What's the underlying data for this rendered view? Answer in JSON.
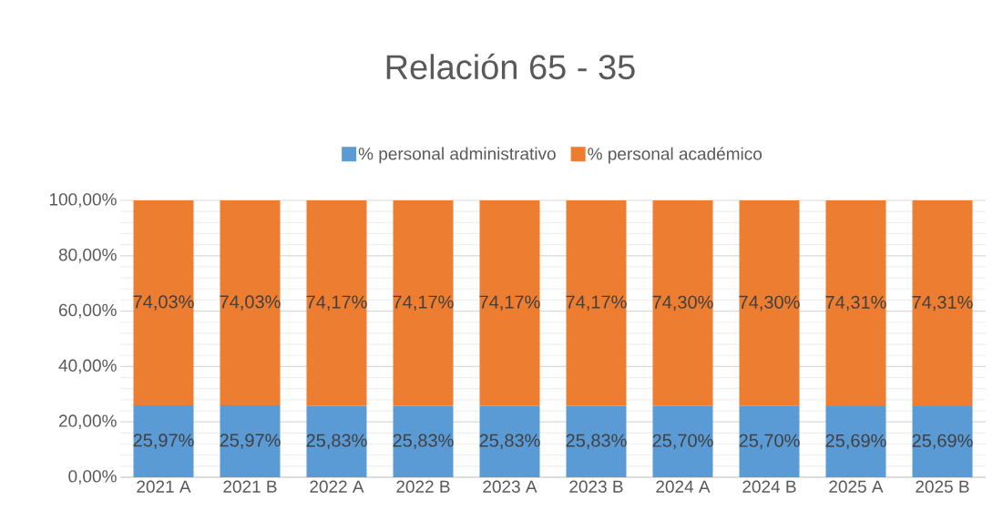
{
  "chart_data": {
    "type": "bar",
    "title": "Relación 65 - 35",
    "categories": [
      "2021 A",
      "2021 B",
      "2022 A",
      "2022 B",
      "2023 A",
      "2023 B",
      "2024 A",
      "2024 B",
      "2025 A",
      "2025 B"
    ],
    "series": [
      {
        "name": "% personal administrativo",
        "color": "#5b9bd5",
        "values": [
          25.97,
          25.97,
          25.83,
          25.83,
          25.83,
          25.83,
          25.7,
          25.7,
          25.69,
          25.69
        ],
        "value_labels": [
          "25,97%",
          "25,97%",
          "25,83%",
          "25,83%",
          "25,83%",
          "25,83%",
          "25,70%",
          "25,70%",
          "25,69%",
          "25,69%"
        ]
      },
      {
        "name": "% personal académico",
        "color": "#ed7d31",
        "values": [
          74.03,
          74.03,
          74.17,
          74.17,
          74.17,
          74.17,
          74.3,
          74.3,
          74.31,
          74.31
        ],
        "value_labels": [
          "74,03%",
          "74,03%",
          "74,17%",
          "74,17%",
          "74,17%",
          "74,17%",
          "74,30%",
          "74,30%",
          "74,31%",
          "74,31%"
        ]
      }
    ],
    "stacked": true,
    "ylim": [
      0,
      100
    ],
    "yticks": [
      {
        "value": 0,
        "label": "0,00%"
      },
      {
        "value": 20,
        "label": "20,00%"
      },
      {
        "value": 40,
        "label": "40,00%"
      },
      {
        "value": 60,
        "label": "60,00%"
      },
      {
        "value": 80,
        "label": "80,00%"
      },
      {
        "value": 100,
        "label": "100,00%"
      }
    ],
    "grid": "y",
    "legend": "top"
  }
}
